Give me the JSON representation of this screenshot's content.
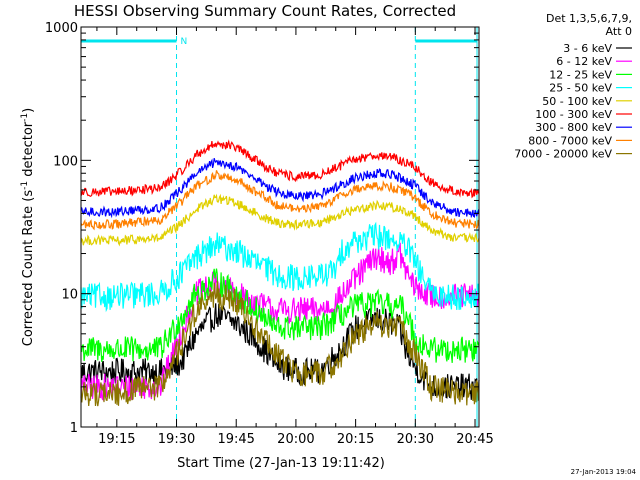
{
  "chart_data": {
    "type": "line",
    "title": "HESSI Observing Summary Count Rates, Corrected",
    "xlabel": "Start Time (27-Jan-13 19:11:42)",
    "ylabel_main": "Corrected Count Rate (s",
    "ylabel_sup1": "-1",
    "ylabel_mid": " detector",
    "ylabel_sup2": "-1",
    "ylabel_end": ")",
    "timestamp": "27-Jan-2013 19:04",
    "x_range_minutes": [
      1146.0,
      1246.0
    ],
    "y_range": [
      1,
      1000
    ],
    "y_scale": "log",
    "x_tick_labels": [
      "19:15",
      "19:30",
      "19:45",
      "20:00",
      "20:15",
      "20:30",
      "20:45"
    ],
    "x_tick_minutes": [
      1155,
      1170,
      1185,
      1200,
      1215,
      1230,
      1245
    ],
    "y_tick_labels": [
      "1",
      "10",
      "100",
      "1000"
    ],
    "y_tick_values": [
      1,
      10,
      100,
      1000
    ],
    "legend_header": [
      "Det 1,3,5,6,7,9,",
      "Att 0"
    ],
    "night_intervals_minutes": [
      [
        1146.0,
        1170.0
      ],
      [
        1230.0,
        1245.5
      ]
    ],
    "saa_flag_label": "N",
    "series": [
      {
        "name": "3 - 6 keV",
        "color": "#000000",
        "points": [
          [
            1146,
            2.6
          ],
          [
            1155,
            2.6
          ],
          [
            1166,
            2.6
          ],
          [
            1171,
            3.0
          ],
          [
            1175,
            5.0
          ],
          [
            1180,
            7.0
          ],
          [
            1185,
            6.0
          ],
          [
            1190,
            4.5
          ],
          [
            1195,
            3.0
          ],
          [
            1200,
            2.6
          ],
          [
            1206,
            2.6
          ],
          [
            1210,
            3.5
          ],
          [
            1215,
            5.5
          ],
          [
            1220,
            6.5
          ],
          [
            1224,
            6.0
          ],
          [
            1226,
            5.5
          ],
          [
            1228,
            3.5
          ],
          [
            1230,
            2.8
          ],
          [
            1234,
            2.0
          ],
          [
            1240,
            2.0
          ],
          [
            1246,
            2.0
          ]
        ]
      },
      {
        "name": "6 - 12 keV",
        "color": "#ff00ff",
        "points": [
          [
            1146,
            2.0
          ],
          [
            1155,
            2.0
          ],
          [
            1166,
            2.0
          ],
          [
            1171,
            5.0
          ],
          [
            1175,
            10.0
          ],
          [
            1180,
            12.0
          ],
          [
            1185,
            10.0
          ],
          [
            1190,
            8.5
          ],
          [
            1195,
            7.5
          ],
          [
            1200,
            7.5
          ],
          [
            1206,
            7.5
          ],
          [
            1210,
            8.5
          ],
          [
            1215,
            13.0
          ],
          [
            1220,
            19.0
          ],
          [
            1224,
            17.0
          ],
          [
            1226,
            20.0
          ],
          [
            1228,
            14.0
          ],
          [
            1230,
            11.0
          ],
          [
            1234,
            9.5
          ],
          [
            1240,
            9.5
          ],
          [
            1246,
            9.5
          ]
        ]
      },
      {
        "name": "12 - 25 keV",
        "color": "#00ff00",
        "points": [
          [
            1146,
            3.8
          ],
          [
            1155,
            3.8
          ],
          [
            1166,
            3.8
          ],
          [
            1171,
            6.5
          ],
          [
            1175,
            10.0
          ],
          [
            1180,
            12.5
          ],
          [
            1185,
            10.0
          ],
          [
            1190,
            7.5
          ],
          [
            1195,
            5.5
          ],
          [
            1200,
            5.5
          ],
          [
            1206,
            5.5
          ],
          [
            1210,
            6.5
          ],
          [
            1215,
            8.0
          ],
          [
            1220,
            8.5
          ],
          [
            1224,
            8.0
          ],
          [
            1226,
            8.0
          ],
          [
            1228,
            7.0
          ],
          [
            1230,
            4.5
          ],
          [
            1234,
            3.8
          ],
          [
            1240,
            3.8
          ],
          [
            1246,
            3.8
          ]
        ]
      },
      {
        "name": "25 - 50 keV",
        "color": "#00ffff",
        "points": [
          [
            1146,
            9.5
          ],
          [
            1155,
            9.5
          ],
          [
            1166,
            10.0
          ],
          [
            1171,
            14.0
          ],
          [
            1175,
            19.0
          ],
          [
            1180,
            23.0
          ],
          [
            1185,
            21.0
          ],
          [
            1190,
            17.0
          ],
          [
            1195,
            14.0
          ],
          [
            1200,
            13.0
          ],
          [
            1206,
            13.5
          ],
          [
            1210,
            15.0
          ],
          [
            1212,
            22.0
          ],
          [
            1215,
            25.0
          ],
          [
            1220,
            27.0
          ],
          [
            1224,
            26.0
          ],
          [
            1228,
            22.0
          ],
          [
            1230,
            17.0
          ],
          [
            1234,
            10.0
          ],
          [
            1240,
            9.5
          ],
          [
            1246,
            9.5
          ]
        ]
      },
      {
        "name": "50 - 100 keV",
        "color": "#e0d000",
        "points": [
          [
            1146,
            25.0
          ],
          [
            1155,
            25.0
          ],
          [
            1166,
            26.0
          ],
          [
            1171,
            33.0
          ],
          [
            1175,
            43.0
          ],
          [
            1180,
            52.0
          ],
          [
            1185,
            48.0
          ],
          [
            1190,
            40.0
          ],
          [
            1195,
            34.0
          ],
          [
            1200,
            33.0
          ],
          [
            1206,
            34.0
          ],
          [
            1210,
            38.0
          ],
          [
            1215,
            43.0
          ],
          [
            1220,
            46.0
          ],
          [
            1224,
            45.0
          ],
          [
            1228,
            41.0
          ],
          [
            1230,
            38.0
          ],
          [
            1234,
            30.0
          ],
          [
            1240,
            26.0
          ],
          [
            1246,
            26.0
          ]
        ]
      },
      {
        "name": "100 - 300 keV",
        "color": "#ff0000",
        "points": [
          [
            1146,
            58.0
          ],
          [
            1155,
            58.0
          ],
          [
            1166,
            62.0
          ],
          [
            1171,
            82.0
          ],
          [
            1175,
            110.0
          ],
          [
            1180,
            135.0
          ],
          [
            1185,
            125.0
          ],
          [
            1190,
            100.0
          ],
          [
            1195,
            80.0
          ],
          [
            1200,
            75.0
          ],
          [
            1206,
            77.0
          ],
          [
            1210,
            88.0
          ],
          [
            1215,
            102.0
          ],
          [
            1220,
            110.0
          ],
          [
            1224,
            106.0
          ],
          [
            1228,
            95.0
          ],
          [
            1230,
            88.0
          ],
          [
            1234,
            68.0
          ],
          [
            1240,
            58.0
          ],
          [
            1246,
            57.0
          ]
        ]
      },
      {
        "name": "300 - 800 keV",
        "color": "#0000ff",
        "points": [
          [
            1146,
            41.0
          ],
          [
            1155,
            41.0
          ],
          [
            1166,
            44.0
          ],
          [
            1171,
            60.0
          ],
          [
            1175,
            80.0
          ],
          [
            1180,
            98.0
          ],
          [
            1185,
            90.0
          ],
          [
            1190,
            72.0
          ],
          [
            1195,
            58.0
          ],
          [
            1200,
            53.0
          ],
          [
            1206,
            55.0
          ],
          [
            1210,
            63.0
          ],
          [
            1215,
            74.0
          ],
          [
            1220,
            80.0
          ],
          [
            1224,
            78.0
          ],
          [
            1228,
            70.0
          ],
          [
            1230,
            64.0
          ],
          [
            1234,
            48.0
          ],
          [
            1240,
            41.0
          ],
          [
            1246,
            40.0
          ]
        ]
      },
      {
        "name": "800 - 7000 keV",
        "color": "#ff8000",
        "points": [
          [
            1146,
            33.0
          ],
          [
            1155,
            33.0
          ],
          [
            1166,
            36.0
          ],
          [
            1171,
            48.0
          ],
          [
            1175,
            64.0
          ],
          [
            1180,
            78.0
          ],
          [
            1185,
            72.0
          ],
          [
            1190,
            58.0
          ],
          [
            1195,
            47.0
          ],
          [
            1200,
            43.0
          ],
          [
            1206,
            45.0
          ],
          [
            1210,
            52.0
          ],
          [
            1215,
            61.0
          ],
          [
            1220,
            65.0
          ],
          [
            1224,
            63.0
          ],
          [
            1228,
            57.0
          ],
          [
            1230,
            52.0
          ],
          [
            1234,
            40.0
          ],
          [
            1240,
            34.0
          ],
          [
            1246,
            33.0
          ]
        ]
      },
      {
        "name": "7000 - 20000 keV",
        "color": "#8b7500",
        "points": [
          [
            1146,
            1.8
          ],
          [
            1155,
            1.8
          ],
          [
            1166,
            2.0
          ],
          [
            1171,
            4.0
          ],
          [
            1175,
            7.5
          ],
          [
            1180,
            10.0
          ],
          [
            1185,
            8.5
          ],
          [
            1190,
            5.5
          ],
          [
            1195,
            3.5
          ],
          [
            1200,
            2.5
          ],
          [
            1206,
            2.5
          ],
          [
            1210,
            3.0
          ],
          [
            1215,
            5.0
          ],
          [
            1220,
            6.0
          ],
          [
            1224,
            5.5
          ],
          [
            1226,
            6.0
          ],
          [
            1228,
            4.5
          ],
          [
            1230,
            3.5
          ],
          [
            1234,
            2.0
          ],
          [
            1240,
            1.8
          ],
          [
            1246,
            1.8
          ]
        ]
      }
    ]
  }
}
